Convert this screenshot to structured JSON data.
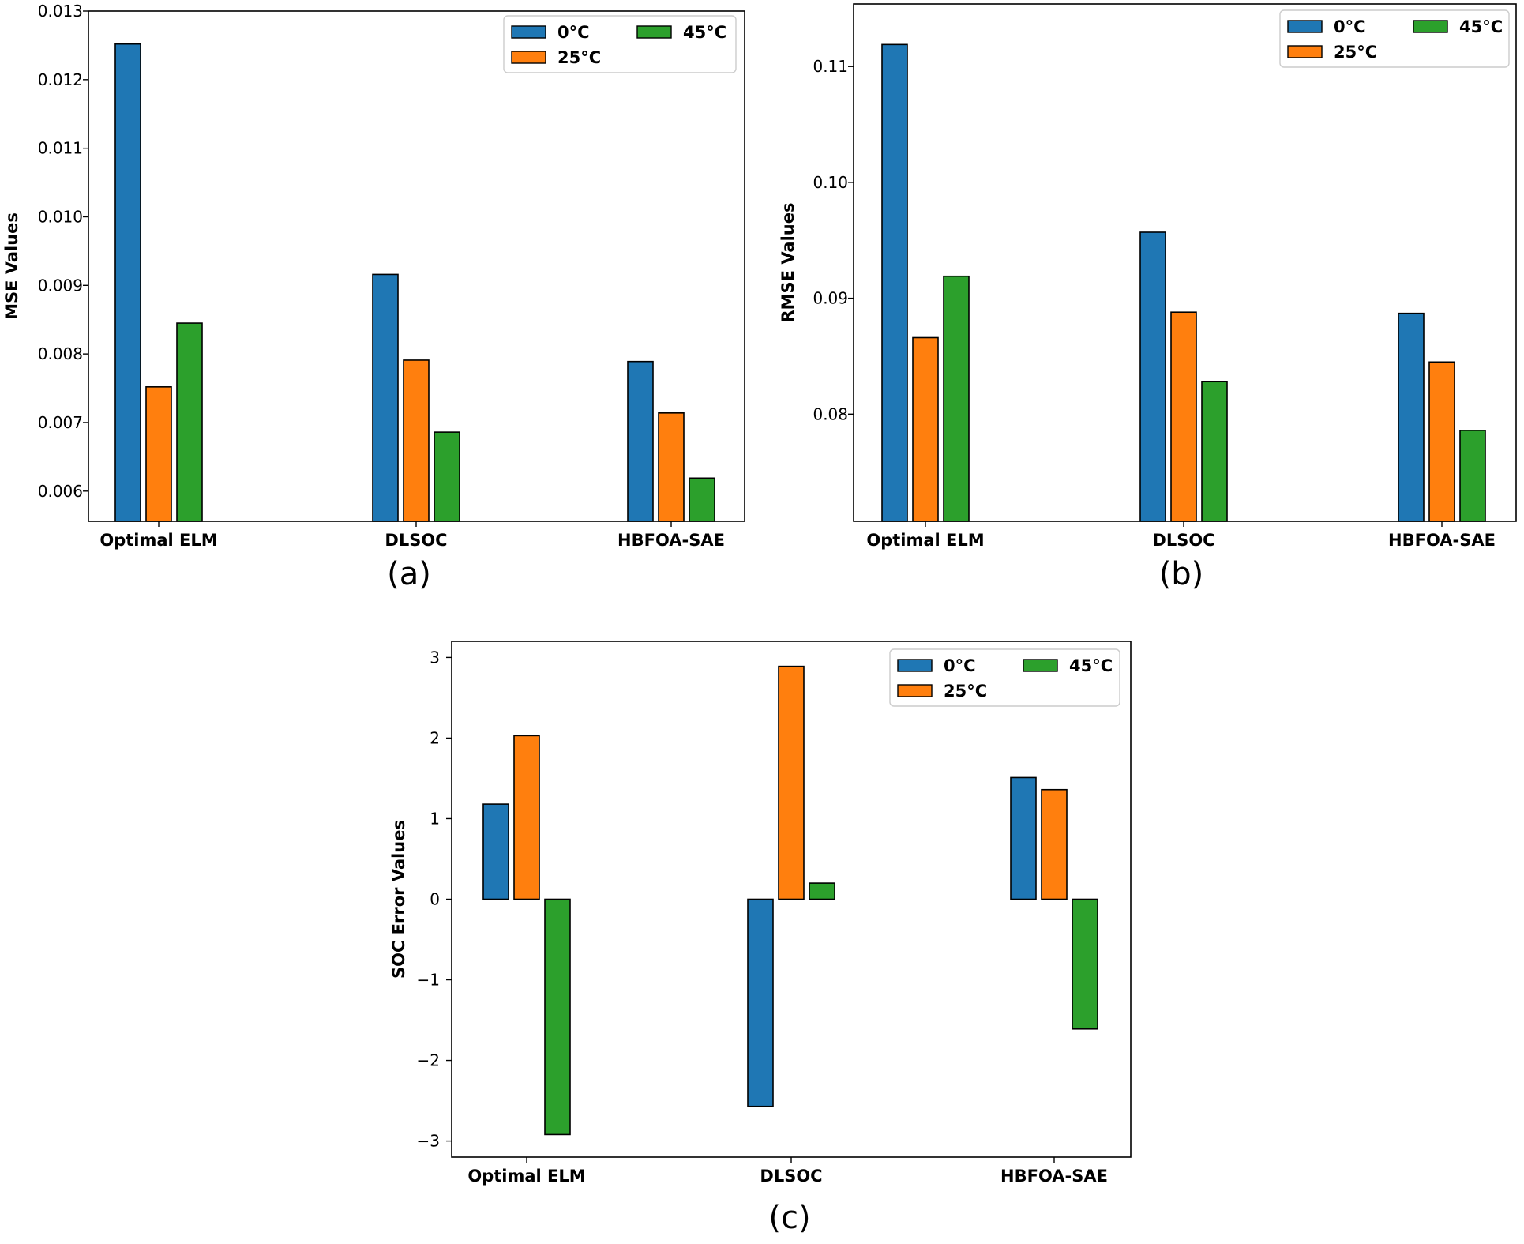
{
  "colors": {
    "s0": "#1f77b4",
    "s1": "#ff7f0e",
    "s2": "#2ca02c"
  },
  "chart_data": [
    {
      "type": "bar",
      "panel_label": "(a)",
      "categories": [
        "Optimal ELM",
        "DLSOC",
        "HBFOA-SAE"
      ],
      "series": [
        {
          "name": "0°C",
          "values": [
            0.01252,
            0.00916,
            0.00789
          ]
        },
        {
          "name": "25°C",
          "values": [
            0.00752,
            0.00791,
            0.00714
          ]
        },
        {
          "name": "45°C",
          "values": [
            0.00845,
            0.00686,
            0.00619
          ]
        }
      ],
      "ylabel": "MSE Values",
      "ylim": [
        0.00556,
        0.013
      ],
      "yticks": [
        0.006,
        0.007,
        0.008,
        0.009,
        0.01,
        0.011,
        0.012,
        0.013
      ],
      "ytick_labels": [
        "0.006",
        "0.007",
        "0.008",
        "0.009",
        "0.010",
        "0.011",
        "0.012",
        "0.013"
      ],
      "legend": "upper-right",
      "grid": false
    },
    {
      "type": "bar",
      "panel_label": "(b)",
      "categories": [
        "Optimal ELM",
        "DLSOC",
        "HBFOA-SAE"
      ],
      "series": [
        {
          "name": "0°C",
          "values": [
            0.1119,
            0.0957,
            0.0887
          ]
        },
        {
          "name": "25°C",
          "values": [
            0.0866,
            0.0888,
            0.0845
          ]
        },
        {
          "name": "45°C",
          "values": [
            0.0919,
            0.0828,
            0.0786
          ]
        }
      ],
      "ylabel": "RMSE Values",
      "ylim": [
        0.07075,
        0.1154
      ],
      "yticks": [
        0.08,
        0.09,
        0.1,
        0.11
      ],
      "ytick_labels": [
        "0.08",
        "0.09",
        "0.10",
        "0.11"
      ],
      "legend": "upper-right",
      "grid": false
    },
    {
      "type": "bar",
      "panel_label": "(c)",
      "categories": [
        "Optimal ELM",
        "DLSOC",
        "HBFOA-SAE"
      ],
      "series": [
        {
          "name": "0°C",
          "values": [
            1.18,
            -2.57,
            1.51
          ]
        },
        {
          "name": "25°C",
          "values": [
            2.03,
            2.89,
            1.36
          ]
        },
        {
          "name": "45°C",
          "values": [
            -2.92,
            0.2,
            -1.61
          ]
        }
      ],
      "ylabel": "SOC Error Values",
      "ylim": [
        -3.2,
        3.2
      ],
      "yticks": [
        -3,
        -2,
        -1,
        0,
        1,
        2,
        3
      ],
      "ytick_labels": [
        "−3",
        "−2",
        "−1",
        "0",
        "1",
        "2",
        "3"
      ],
      "legend": "upper-right",
      "grid": false
    }
  ]
}
